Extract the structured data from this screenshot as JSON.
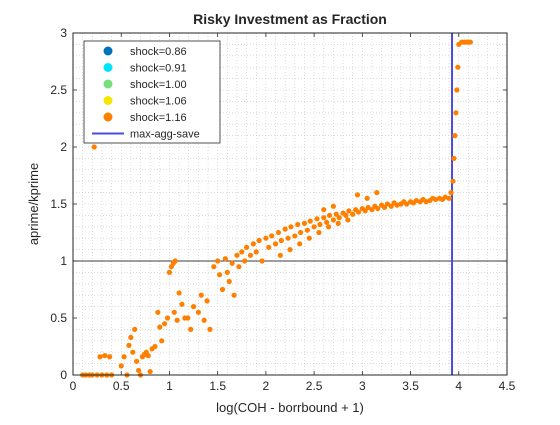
{
  "chart_data": {
    "type": "scatter",
    "title": "Risky Investment as Fraction",
    "xlabel": "log(COH - borrbound + 1)",
    "ylabel": "aprime/kprime",
    "xlim": [
      0,
      4.5
    ],
    "ylim": [
      0,
      3
    ],
    "xticks": [
      0,
      0.5,
      1,
      1.5,
      2,
      2.5,
      3,
      3.5,
      4,
      4.5
    ],
    "xtick_labels": [
      "0",
      "0.5",
      "1",
      "1.5",
      "2",
      "2.5",
      "3",
      "3.5",
      "4",
      "4.5"
    ],
    "yticks": [
      0,
      0.5,
      1,
      1.5,
      2,
      2.5,
      3
    ],
    "ytick_labels": [
      "0",
      "0.5",
      "1",
      "1.5",
      "2",
      "2.5",
      "3"
    ],
    "grid": "minor dotted grid on",
    "legend_position": "top-left",
    "legend": [
      {
        "label": "shock=0.86",
        "color": "#0072BD",
        "marker": "dot"
      },
      {
        "label": "shock=0.91",
        "color": "#00E5FF",
        "marker": "dot"
      },
      {
        "label": "shock=1.00",
        "color": "#77E07A",
        "marker": "dot"
      },
      {
        "label": "shock=1.06",
        "color": "#F5E600",
        "marker": "dot"
      },
      {
        "label": "shock=1.16",
        "color": "#FF8000",
        "marker": "dot"
      },
      {
        "label": "max-agg-save",
        "color": "#4A4AE0",
        "marker": "line"
      }
    ],
    "reference_lines": [
      {
        "orientation": "horizontal",
        "value": 1,
        "color": "#000000"
      },
      {
        "name": "max-agg-save",
        "orientation": "vertical",
        "value": 3.93,
        "color": "#4A4AE0"
      }
    ],
    "series": [
      {
        "name": "shock=1.16",
        "color": "#FF8000",
        "points": [
          [
            0.1,
            0.0
          ],
          [
            0.13,
            0.0
          ],
          [
            0.17,
            0.0
          ],
          [
            0.2,
            0.0
          ],
          [
            0.25,
            0.0
          ],
          [
            0.3,
            0.0
          ],
          [
            0.35,
            0.0
          ],
          [
            0.4,
            0.0
          ],
          [
            0.28,
            0.16
          ],
          [
            0.33,
            0.17
          ],
          [
            0.38,
            0.16
          ],
          [
            0.22,
            2.0
          ],
          [
            0.5,
            0.08
          ],
          [
            0.53,
            0.16
          ],
          [
            0.56,
            0.0
          ],
          [
            0.58,
            0.26
          ],
          [
            0.6,
            0.33
          ],
          [
            0.62,
            0.2
          ],
          [
            0.64,
            0.4
          ],
          [
            0.66,
            0.12
          ],
          [
            0.68,
            0.04
          ],
          [
            0.7,
            0.0
          ],
          [
            0.72,
            0.16
          ],
          [
            0.74,
            0.18
          ],
          [
            0.76,
            0.2
          ],
          [
            0.78,
            0.17
          ],
          [
            0.8,
            0.03
          ],
          [
            0.82,
            0.23
          ],
          [
            0.85,
            0.25
          ],
          [
            0.88,
            0.55
          ],
          [
            0.9,
            0.42
          ],
          [
            0.92,
            0.3
          ],
          [
            0.95,
            0.45
          ],
          [
            0.98,
            0.5
          ],
          [
            1.0,
            0.9
          ],
          [
            1.02,
            0.95
          ],
          [
            1.04,
            0.98
          ],
          [
            1.06,
            1.0
          ],
          [
            1.05,
            0.55
          ],
          [
            1.08,
            0.48
          ],
          [
            1.1,
            0.72
          ],
          [
            1.13,
            0.62
          ],
          [
            1.16,
            0.5
          ],
          [
            1.19,
            0.5
          ],
          [
            1.22,
            0.4
          ],
          [
            1.25,
            0.6
          ],
          [
            1.3,
            0.55
          ],
          [
            1.33,
            0.7
          ],
          [
            1.36,
            0.48
          ],
          [
            1.39,
            0.65
          ],
          [
            1.42,
            0.4
          ],
          [
            1.46,
            0.95
          ],
          [
            1.5,
            1.0
          ],
          [
            1.52,
            0.88
          ],
          [
            1.55,
            0.75
          ],
          [
            1.58,
            1.02
          ],
          [
            1.6,
            0.9
          ],
          [
            1.62,
            0.82
          ],
          [
            1.65,
            0.98
          ],
          [
            1.67,
            0.7
          ],
          [
            1.7,
            1.05
          ],
          [
            1.72,
            0.95
          ],
          [
            1.75,
            1.08
          ],
          [
            1.78,
            1.0
          ],
          [
            1.8,
            1.12
          ],
          [
            1.84,
            1.05
          ],
          [
            1.87,
            1.15
          ],
          [
            1.9,
            1.08
          ],
          [
            1.93,
            1.18
          ],
          [
            1.96,
            1.0
          ],
          [
            2.0,
            1.2
          ],
          [
            2.03,
            1.12
          ],
          [
            2.06,
            1.22
          ],
          [
            2.1,
            1.15
          ],
          [
            2.13,
            1.25
          ],
          [
            2.16,
            1.18
          ],
          [
            2.2,
            1.28
          ],
          [
            2.23,
            1.2
          ],
          [
            2.26,
            1.3
          ],
          [
            2.3,
            1.22
          ],
          [
            2.33,
            1.32
          ],
          [
            2.36,
            1.25
          ],
          [
            2.4,
            1.33
          ],
          [
            2.43,
            1.27
          ],
          [
            2.46,
            1.35
          ],
          [
            2.5,
            1.3
          ],
          [
            2.53,
            1.37
          ],
          [
            2.56,
            1.32
          ],
          [
            2.6,
            1.38
          ],
          [
            2.63,
            1.34
          ],
          [
            2.66,
            1.4
          ],
          [
            2.7,
            1.36
          ],
          [
            2.73,
            1.41
          ],
          [
            2.76,
            1.38
          ],
          [
            2.8,
            1.42
          ],
          [
            2.83,
            1.4
          ],
          [
            2.86,
            1.44
          ],
          [
            2.9,
            1.41
          ],
          [
            2.93,
            1.45
          ],
          [
            2.96,
            1.43
          ],
          [
            3.0,
            1.46
          ],
          [
            3.03,
            1.44
          ],
          [
            3.06,
            1.47
          ],
          [
            3.1,
            1.45
          ],
          [
            3.13,
            1.48
          ],
          [
            3.16,
            1.46
          ],
          [
            3.2,
            1.49
          ],
          [
            3.23,
            1.47
          ],
          [
            3.26,
            1.5
          ],
          [
            3.3,
            1.48
          ],
          [
            3.33,
            1.51
          ],
          [
            3.36,
            1.49
          ],
          [
            3.4,
            1.5
          ],
          [
            3.43,
            1.52
          ],
          [
            3.46,
            1.5
          ],
          [
            3.5,
            1.52
          ],
          [
            3.53,
            1.51
          ],
          [
            3.56,
            1.53
          ],
          [
            3.6,
            1.52
          ],
          [
            3.63,
            1.54
          ],
          [
            3.66,
            1.52
          ],
          [
            3.7,
            1.53
          ],
          [
            3.73,
            1.55
          ],
          [
            3.76,
            1.54
          ],
          [
            3.8,
            1.55
          ],
          [
            3.83,
            1.54
          ],
          [
            3.86,
            1.56
          ],
          [
            3.9,
            1.55
          ],
          [
            3.92,
            1.6
          ],
          [
            3.94,
            1.7
          ],
          [
            3.95,
            1.9
          ],
          [
            3.96,
            2.1
          ],
          [
            3.97,
            2.3
          ],
          [
            3.98,
            2.5
          ],
          [
            3.99,
            2.7
          ],
          [
            4.0,
            2.9
          ],
          [
            4.03,
            2.92
          ],
          [
            4.06,
            2.92
          ],
          [
            4.09,
            2.92
          ],
          [
            4.12,
            2.92
          ],
          [
            2.35,
            1.15
          ],
          [
            2.45,
            1.2
          ],
          [
            2.55,
            1.25
          ],
          [
            2.65,
            1.3
          ],
          [
            2.75,
            1.33
          ],
          [
            2.85,
            1.36
          ],
          [
            2.15,
            1.05
          ],
          [
            2.25,
            1.1
          ],
          [
            3.05,
            1.55
          ],
          [
            3.15,
            1.6
          ],
          [
            2.95,
            1.58
          ],
          [
            2.6,
            1.45
          ],
          [
            2.7,
            1.48
          ]
        ]
      }
    ]
  }
}
